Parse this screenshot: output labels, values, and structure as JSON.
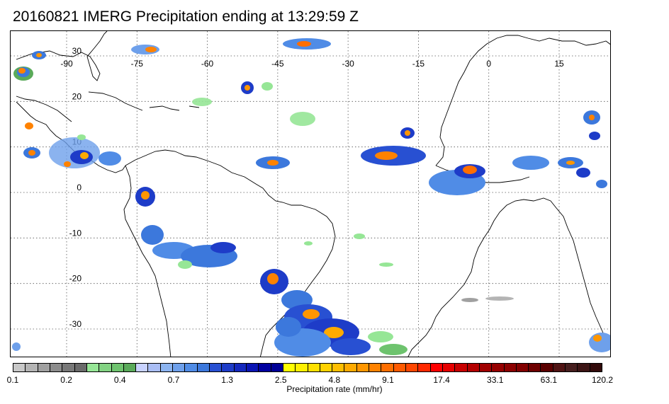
{
  "title": "20160821 IMERG Precipitation ending at 13:29:59 Z",
  "map": {
    "lon_ticks": [
      {
        "label": "-90",
        "value": -90
      },
      {
        "label": "-75",
        "value": -75
      },
      {
        "label": "-60",
        "value": -60
      },
      {
        "label": "-45",
        "value": -45
      },
      {
        "label": "-30",
        "value": -30
      },
      {
        "label": "-15",
        "value": -15
      },
      {
        "label": "0",
        "value": 0
      },
      {
        "label": "15",
        "value": 15
      }
    ],
    "lat_ticks": [
      {
        "label": "30",
        "value": 30
      },
      {
        "label": "20",
        "value": 20
      },
      {
        "label": "10",
        "value": 10
      },
      {
        "label": "0",
        "value": 0
      },
      {
        "label": "-10",
        "value": -10
      },
      {
        "label": "-20",
        "value": -20
      },
      {
        "label": "-30",
        "value": -30
      }
    ],
    "lon_range": [
      -100,
      20
    ],
    "lat_range": [
      -36,
      35
    ],
    "gridlines": "dotted",
    "projection": "cylindrical equidistant"
  },
  "colorbar": {
    "colors": [
      "#c8c8c8",
      "#b4b4b4",
      "#a0a0a0",
      "#8c8c8c",
      "#787878",
      "#6a6a6a",
      "#96e696",
      "#82d282",
      "#6ec36e",
      "#5aaa5a",
      "#c8d2ff",
      "#aabef5",
      "#8cb4f0",
      "#6ea0eb",
      "#508ce6",
      "#3c78dc",
      "#2850d2",
      "#1e3cc8",
      "#1428be",
      "#0a14b4",
      "#0000a0",
      "#000096",
      "#ffff00",
      "#fff000",
      "#ffe000",
      "#ffd200",
      "#ffbe00",
      "#ffaa00",
      "#ff9600",
      "#ff8200",
      "#ff6e00",
      "#ff5a00",
      "#ff4600",
      "#ff2800",
      "#ff0000",
      "#e60000",
      "#c80000",
      "#b40000",
      "#a00000",
      "#960000",
      "#8c0000",
      "#820000",
      "#6e0000",
      "#5a0000",
      "#501414",
      "#461e1e",
      "#3c1414",
      "#320a0a"
    ],
    "labels": [
      "0.1",
      "0.2",
      "0.4",
      "0.7",
      "1.3",
      "2.5",
      "4.8",
      "9.1",
      "17.4",
      "33.1",
      "63.1",
      "120.2"
    ],
    "label_units": "Precipitation rate (mm/hr)"
  }
}
